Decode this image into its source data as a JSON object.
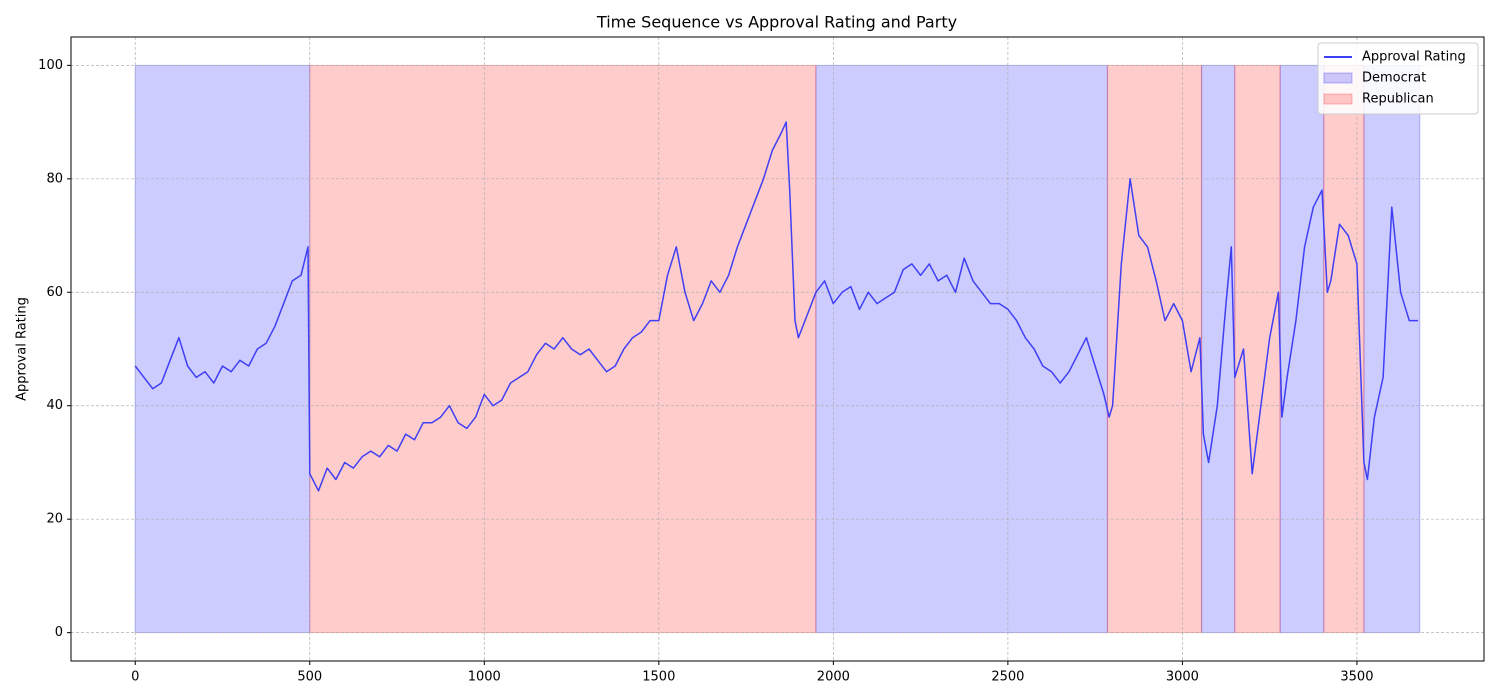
{
  "chart_data": {
    "type": "line",
    "title": "Time Sequence vs Approval Rating and Party",
    "y_label": "Approval Rating",
    "xlim": [
      -184,
      3864
    ],
    "ylim": [
      -5,
      105
    ],
    "xticks": [
      0,
      500,
      1000,
      1500,
      2000,
      2500,
      3000,
      3500
    ],
    "yticks": [
      0,
      20,
      40,
      60,
      80,
      100
    ],
    "grid": true,
    "legend": "upper right",
    "series": [
      {
        "name": "Approval Rating",
        "color": "#3f3ff5",
        "x": [
          0,
          25,
          50,
          75,
          100,
          125,
          150,
          175,
          200,
          225,
          250,
          275,
          300,
          325,
          350,
          375,
          400,
          425,
          450,
          475,
          495,
          500,
          525,
          550,
          575,
          600,
          625,
          650,
          675,
          700,
          725,
          750,
          775,
          800,
          825,
          850,
          875,
          900,
          925,
          950,
          975,
          1000,
          1025,
          1050,
          1075,
          1100,
          1125,
          1150,
          1175,
          1200,
          1225,
          1250,
          1275,
          1300,
          1325,
          1350,
          1375,
          1400,
          1425,
          1450,
          1475,
          1500,
          1525,
          1550,
          1575,
          1600,
          1625,
          1650,
          1675,
          1700,
          1725,
          1750,
          1775,
          1800,
          1825,
          1850,
          1865,
          1875,
          1890,
          1900,
          1925,
          1950,
          1975,
          2000,
          2025,
          2050,
          2075,
          2100,
          2125,
          2150,
          2175,
          2200,
          2225,
          2250,
          2275,
          2300,
          2325,
          2350,
          2375,
          2400,
          2425,
          2450,
          2475,
          2500,
          2525,
          2550,
          2575,
          2600,
          2625,
          2650,
          2675,
          2700,
          2725,
          2750,
          2775,
          2790,
          2800,
          2825,
          2850,
          2875,
          2900,
          2925,
          2950,
          2975,
          3000,
          3025,
          3050,
          3060,
          3075,
          3100,
          3125,
          3140,
          3150,
          3175,
          3200,
          3225,
          3250,
          3275,
          3285,
          3300,
          3325,
          3350,
          3375,
          3400,
          3415,
          3425,
          3450,
          3475,
          3500,
          3520,
          3530,
          3550,
          3575,
          3600,
          3625,
          3650,
          3675
        ],
        "values": [
          47,
          45,
          43,
          44,
          48,
          52,
          47,
          45,
          46,
          44,
          47,
          46,
          48,
          47,
          50,
          51,
          54,
          58,
          62,
          63,
          68,
          28,
          25,
          29,
          27,
          30,
          29,
          31,
          32,
          31,
          33,
          32,
          35,
          34,
          37,
          37,
          38,
          40,
          37,
          36,
          38,
          42,
          40,
          41,
          44,
          45,
          46,
          49,
          51,
          50,
          52,
          50,
          49,
          50,
          48,
          46,
          47,
          50,
          52,
          53,
          55,
          55,
          63,
          68,
          60,
          55,
          58,
          62,
          60,
          63,
          68,
          72,
          76,
          80,
          85,
          88,
          90,
          78,
          55,
          52,
          56,
          60,
          62,
          58,
          60,
          61,
          57,
          60,
          58,
          59,
          60,
          64,
          65,
          63,
          65,
          62,
          63,
          60,
          66,
          62,
          60,
          58,
          58,
          57,
          55,
          52,
          50,
          47,
          46,
          44,
          46,
          49,
          52,
          47,
          42,
          38,
          40,
          65,
          80,
          70,
          68,
          62,
          55,
          58,
          55,
          46,
          52,
          35,
          30,
          40,
          58,
          68,
          45,
          50,
          28,
          40,
          52,
          60,
          38,
          45,
          55,
          68,
          75,
          78,
          60,
          62,
          72,
          70,
          65,
          30,
          27,
          38,
          45,
          75,
          60,
          55,
          55
        ]
      }
    ],
    "shaded": [
      {
        "name": "Democrat",
        "color": "#0000ff",
        "ybottom": 0,
        "ytop": 100,
        "spans": [
          [
            0,
            500
          ],
          [
            1950,
            2785
          ],
          [
            3055,
            3150
          ],
          [
            3280,
            3405
          ],
          [
            3520,
            3680
          ]
        ]
      },
      {
        "name": "Republican",
        "color": "#ff0000",
        "ybottom": 0,
        "ytop": 100,
        "spans": [
          [
            500,
            1950
          ],
          [
            2785,
            3055
          ],
          [
            3150,
            3280
          ],
          [
            3405,
            3520
          ]
        ]
      }
    ]
  }
}
